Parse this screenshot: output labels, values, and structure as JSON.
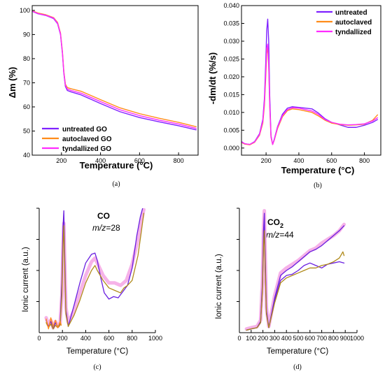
{
  "colors": {
    "untreated": "#7f22ff",
    "autoclaved": "#ff8c1a",
    "tyndallized": "#ff2cff",
    "untreated_ms": "#6a1fe0",
    "autoclaved_ms": "#b08a1a",
    "tyndallized_ms": "#f6b2e8"
  },
  "chart_data": [
    {
      "id": "a",
      "type": "line",
      "caption": "(a)",
      "xlabel": "Temperature (°C)",
      "ylabel": "Δm (%)",
      "xlim": [
        50,
        900
      ],
      "ylim": [
        40,
        102
      ],
      "xticks": [
        200,
        400,
        600,
        800
      ],
      "yticks": [
        40,
        50,
        60,
        70,
        80,
        90,
        100
      ],
      "legend_position": "bottom-left",
      "series": [
        {
          "name": "untreated GO",
          "color_key": "untreated",
          "x": [
            50,
            80,
            120,
            160,
            180,
            195,
            205,
            212,
            220,
            230,
            250,
            300,
            400,
            500,
            600,
            700,
            800,
            890
          ],
          "y": [
            99.6,
            98.6,
            97.9,
            96.6,
            94.5,
            90.0,
            82.0,
            74.0,
            68.5,
            66.8,
            66.2,
            65.0,
            61.4,
            58.0,
            55.6,
            53.8,
            52.2,
            50.5
          ]
        },
        {
          "name": "autoclaved GO",
          "color_key": "autoclaved",
          "x": [
            50,
            80,
            120,
            160,
            180,
            195,
            205,
            212,
            220,
            230,
            250,
            300,
            400,
            500,
            600,
            700,
            800,
            890
          ],
          "y": [
            99.8,
            98.9,
            98.2,
            97.0,
            95.0,
            90.6,
            82.8,
            74.8,
            69.4,
            68.0,
            67.5,
            66.5,
            63.0,
            59.6,
            57.2,
            55.3,
            53.6,
            51.8
          ]
        },
        {
          "name": "tyndallized GO",
          "color_key": "tyndallized",
          "x": [
            50,
            80,
            120,
            160,
            180,
            195,
            205,
            212,
            220,
            230,
            250,
            300,
            400,
            500,
            600,
            700,
            800,
            890
          ],
          "y": [
            99.7,
            98.7,
            98.0,
            96.8,
            94.7,
            90.3,
            82.4,
            74.4,
            69.0,
            67.4,
            66.8,
            65.7,
            62.2,
            58.8,
            56.4,
            54.5,
            52.9,
            51.1
          ]
        }
      ]
    },
    {
      "id": "b",
      "type": "line",
      "caption": "(b)",
      "xlabel": "Temperature (°C)",
      "ylabel": "-dm/dt (%/s)",
      "xlim": [
        50,
        900
      ],
      "ylim": [
        -0.002,
        0.04
      ],
      "xticks": [
        200,
        400,
        600,
        800
      ],
      "yticks": [
        0.0,
        0.005,
        0.01,
        0.015,
        0.02,
        0.025,
        0.03,
        0.035,
        0.04
      ],
      "ytick_labels": [
        "0.000",
        "0.005",
        "0.010",
        "0.015",
        "0.020",
        "0.025",
        "0.030",
        "0.035",
        "0.040"
      ],
      "legend_position": "top-right",
      "series": [
        {
          "name": "untreated",
          "color_key": "untreated",
          "x": [
            50,
            70,
            100,
            130,
            160,
            180,
            190,
            198,
            204,
            210,
            216,
            222,
            230,
            240,
            250,
            270,
            300,
            330,
            360,
            400,
            440,
            480,
            520,
            560,
            600,
            650,
            700,
            750,
            800,
            850,
            880
          ],
          "y": [
            0.0018,
            0.0012,
            0.001,
            0.0018,
            0.004,
            0.008,
            0.014,
            0.024,
            0.033,
            0.0362,
            0.03,
            0.015,
            0.0035,
            0.001,
            0.0025,
            0.006,
            0.0095,
            0.0112,
            0.0116,
            0.0114,
            0.0112,
            0.011,
            0.0098,
            0.0082,
            0.0072,
            0.0065,
            0.0058,
            0.0058,
            0.0064,
            0.0072,
            0.008
          ]
        },
        {
          "name": "autoclaved",
          "color_key": "autoclaved",
          "x": [
            50,
            70,
            100,
            130,
            160,
            180,
            190,
            198,
            204,
            210,
            216,
            222,
            230,
            240,
            250,
            270,
            300,
            330,
            360,
            400,
            440,
            480,
            520,
            560,
            600,
            650,
            700,
            750,
            800,
            850,
            880
          ],
          "y": [
            0.0016,
            0.0011,
            0.0009,
            0.0016,
            0.0036,
            0.007,
            0.012,
            0.02,
            0.0265,
            0.0285,
            0.023,
            0.012,
            0.003,
            0.001,
            0.0022,
            0.0055,
            0.0088,
            0.0105,
            0.011,
            0.0108,
            0.0104,
            0.01,
            0.009,
            0.0078,
            0.007,
            0.0066,
            0.0064,
            0.0065,
            0.0067,
            0.0078,
            0.0093
          ]
        },
        {
          "name": "tyndallized",
          "color_key": "tyndallized",
          "x": [
            50,
            70,
            100,
            130,
            160,
            180,
            190,
            198,
            204,
            210,
            216,
            222,
            230,
            240,
            250,
            270,
            300,
            330,
            360,
            400,
            440,
            480,
            520,
            560,
            600,
            650,
            700,
            750,
            800,
            850,
            880
          ],
          "y": [
            0.0017,
            0.0012,
            0.001,
            0.0017,
            0.0038,
            0.0075,
            0.013,
            0.0215,
            0.028,
            0.0292,
            0.024,
            0.0125,
            0.0032,
            0.001,
            0.0023,
            0.0058,
            0.0091,
            0.0108,
            0.0113,
            0.0112,
            0.0108,
            0.0104,
            0.0094,
            0.008,
            0.0072,
            0.0067,
            0.0065,
            0.0066,
            0.0068,
            0.0076,
            0.0085
          ]
        }
      ]
    },
    {
      "id": "c",
      "type": "line",
      "caption": "(c)",
      "xlabel": "Temperature (°C)",
      "ylabel": "Ionic current (a.u.)",
      "annotation_title": "CO",
      "annotation_mz": "m/z",
      "annotation_mz_value": "=28",
      "xlim": [
        0,
        1000
      ],
      "ylim": [
        0,
        1
      ],
      "xticks": [
        0,
        200,
        400,
        600,
        800,
        1000
      ],
      "series": [
        {
          "name": "",
          "color_key": "tyndallized_ms",
          "width": 5,
          "x": [
            60,
            80,
            100,
            120,
            140,
            160,
            180,
            195,
            205,
            212,
            220,
            230,
            250,
            300,
            350,
            400,
            450,
            480,
            500,
            550,
            600,
            650,
            700,
            750,
            800,
            850,
            880,
            900
          ],
          "y": [
            0.12,
            0.06,
            0.1,
            0.04,
            0.09,
            0.05,
            0.08,
            0.3,
            0.72,
            0.88,
            0.55,
            0.2,
            0.08,
            0.18,
            0.32,
            0.46,
            0.57,
            0.6,
            0.56,
            0.46,
            0.4,
            0.4,
            0.38,
            0.42,
            0.55,
            0.75,
            0.9,
            0.99
          ]
        },
        {
          "name": "",
          "color_key": "untreated_ms",
          "width": 1.3,
          "x": [
            60,
            80,
            100,
            120,
            140,
            160,
            180,
            195,
            205,
            212,
            220,
            230,
            250,
            300,
            350,
            400,
            450,
            480,
            500,
            530,
            560,
            600,
            640,
            680,
            720,
            760,
            800,
            840,
            870,
            890
          ],
          "y": [
            0.1,
            0.05,
            0.09,
            0.03,
            0.08,
            0.05,
            0.07,
            0.4,
            0.85,
            0.98,
            0.6,
            0.18,
            0.05,
            0.22,
            0.4,
            0.56,
            0.63,
            0.64,
            0.58,
            0.44,
            0.32,
            0.27,
            0.29,
            0.28,
            0.33,
            0.38,
            0.52,
            0.78,
            0.93,
            1.0
          ]
        },
        {
          "name": "",
          "color_key": "autoclaved_ms",
          "width": 1.3,
          "x": [
            60,
            80,
            100,
            120,
            140,
            160,
            180,
            195,
            205,
            212,
            220,
            230,
            250,
            300,
            350,
            400,
            450,
            480,
            500,
            550,
            600,
            650,
            700,
            730,
            760,
            800,
            850,
            880,
            900
          ],
          "y": [
            0.08,
            0.04,
            0.07,
            0.03,
            0.06,
            0.04,
            0.06,
            0.3,
            0.7,
            0.86,
            0.5,
            0.15,
            0.05,
            0.14,
            0.26,
            0.4,
            0.5,
            0.54,
            0.5,
            0.42,
            0.36,
            0.34,
            0.32,
            0.36,
            0.38,
            0.42,
            0.62,
            0.82,
            0.96
          ]
        },
        {
          "name": "",
          "color_key": "autoclaved",
          "width": 1.3,
          "x": [
            60,
            80,
            100,
            120,
            140,
            160,
            180,
            190
          ],
          "y": [
            0.11,
            0.03,
            0.12,
            0.05,
            0.1,
            0.04,
            0.09,
            0.06
          ]
        }
      ]
    },
    {
      "id": "d",
      "type": "line",
      "caption": "(d)",
      "xlabel": "Temperature (°C)",
      "ylabel": "Ionic current (a.u.)",
      "annotation_title": "CO",
      "annotation_subscript": "2",
      "annotation_mz": "m/z",
      "annotation_mz_value": "=44",
      "xlim": [
        0,
        1000
      ],
      "ylim": [
        0,
        1
      ],
      "xticks": [
        0,
        100,
        200,
        300,
        400,
        500,
        600,
        700,
        800,
        900,
        1000
      ],
      "series": [
        {
          "name": "",
          "color_key": "tyndallized_ms",
          "width": 5,
          "x": [
            60,
            100,
            150,
            180,
            195,
            205,
            212,
            220,
            230,
            250,
            300,
            350,
            400,
            450,
            500,
            550,
            600,
            650,
            700,
            750,
            800,
            850,
            890
          ],
          "y": [
            0.03,
            0.04,
            0.05,
            0.1,
            0.4,
            0.85,
            0.98,
            0.6,
            0.2,
            0.05,
            0.3,
            0.48,
            0.52,
            0.55,
            0.58,
            0.62,
            0.66,
            0.68,
            0.72,
            0.75,
            0.78,
            0.82,
            0.87
          ]
        },
        {
          "name": "",
          "color_key": "untreated_ms",
          "width": 1.3,
          "x": [
            60,
            100,
            150,
            180,
            195,
            205,
            212,
            220,
            230,
            250,
            300,
            350,
            400,
            450,
            500,
            550,
            600,
            650,
            700,
            750,
            800,
            850,
            890
          ],
          "y": [
            0.02,
            0.03,
            0.04,
            0.09,
            0.38,
            0.82,
            0.96,
            0.58,
            0.18,
            0.04,
            0.28,
            0.46,
            0.5,
            0.53,
            0.57,
            0.61,
            0.65,
            0.67,
            0.7,
            0.74,
            0.78,
            0.82,
            0.86
          ]
        },
        {
          "name": "",
          "color_key": "untreated_ms",
          "width": 1.3,
          "x": [
            60,
            100,
            150,
            180,
            195,
            205,
            212,
            220,
            230,
            250,
            300,
            350,
            400,
            450,
            500,
            550,
            600,
            650,
            700,
            750,
            800,
            850,
            890
          ],
          "y": [
            0.02,
            0.03,
            0.04,
            0.08,
            0.34,
            0.74,
            0.86,
            0.52,
            0.16,
            0.04,
            0.26,
            0.42,
            0.46,
            0.47,
            0.5,
            0.54,
            0.56,
            0.54,
            0.52,
            0.55,
            0.56,
            0.57,
            0.56
          ]
        },
        {
          "name": "",
          "color_key": "autoclaved_ms",
          "width": 1.3,
          "x": [
            60,
            100,
            150,
            180,
            195,
            205,
            212,
            220,
            230,
            250,
            300,
            350,
            400,
            450,
            500,
            550,
            600,
            650,
            700,
            750,
            800,
            850,
            880,
            890
          ],
          "y": [
            0.02,
            0.03,
            0.04,
            0.08,
            0.32,
            0.7,
            0.82,
            0.48,
            0.15,
            0.04,
            0.24,
            0.4,
            0.44,
            0.46,
            0.48,
            0.5,
            0.52,
            0.52,
            0.54,
            0.55,
            0.57,
            0.6,
            0.65,
            0.62
          ]
        }
      ]
    }
  ]
}
